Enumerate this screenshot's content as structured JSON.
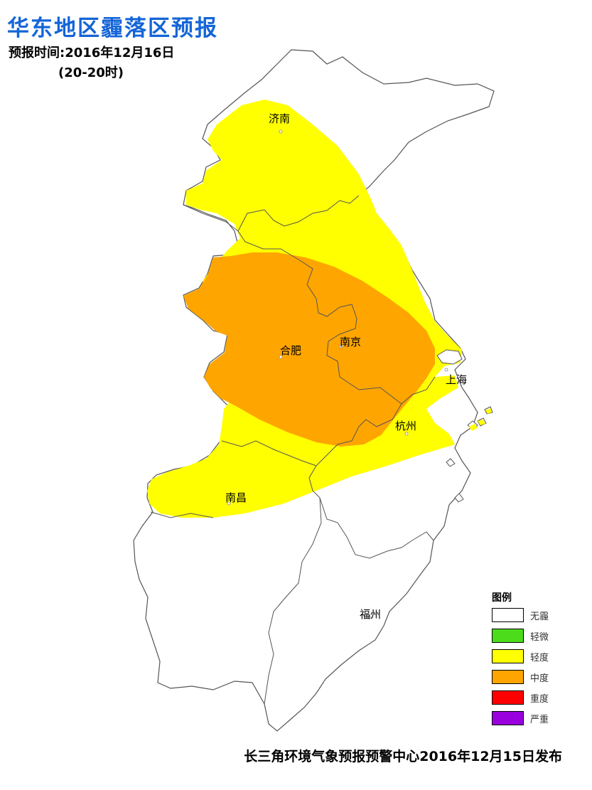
{
  "title": "华东地区霾落区预报",
  "forecast_time": "预报时间:2016年12月16日",
  "forecast_period": "(20-20时)",
  "cities": {
    "jinan": "济南",
    "hefei": "合肥",
    "nanjing": "南京",
    "shanghai": "上海",
    "hangzhou": "杭州",
    "nanchang": "南昌",
    "fuzhou": "福州"
  },
  "legend": {
    "title": "图例",
    "items": [
      {
        "label": "无霾",
        "color": "#ffffff"
      },
      {
        "label": "轻微",
        "color": "#4cdc1c"
      },
      {
        "label": "轻度",
        "color": "#ffff00"
      },
      {
        "label": "中度",
        "color": "#ffa500"
      },
      {
        "label": "重度",
        "color": "#ff0000"
      },
      {
        "label": "严重",
        "color": "#9900dd"
      }
    ]
  },
  "colors": {
    "light_haze": "#ffff00",
    "moderate_haze": "#ffa500",
    "title_blue": "#1565d8"
  },
  "issuer": "长三角环境气象预报预警中心2016年12月15日发布"
}
